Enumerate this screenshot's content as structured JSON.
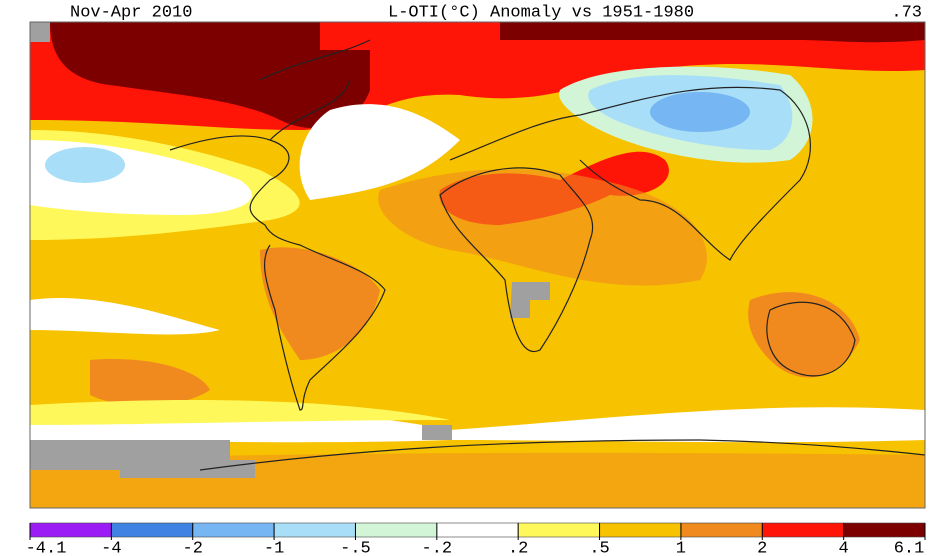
{
  "header": {
    "period": "Nov-Apr 2010",
    "title": "L-OTI(°C) Anomaly vs 1951-1980",
    "global_mean": ".73"
  },
  "legend": {
    "ticks": [
      -4.1,
      -4,
      -2,
      -1,
      {
        "value": -0.5,
        "label": "-.5"
      },
      {
        "value": -0.2,
        "label": "-.2"
      },
      {
        "value": 0.2,
        "label": ".2"
      },
      {
        "value": 0.5,
        "label": ".5"
      },
      1,
      2,
      4,
      6.1
    ],
    "colors": [
      "#9b1cf5",
      "#3f82e4",
      "#76b6f2",
      "#a8def8",
      "#d2f5d8",
      "#ffffff",
      "#fff85a",
      "#f7c200",
      "#f08a1e",
      "#ff1408",
      "#7d0000"
    ]
  }
}
